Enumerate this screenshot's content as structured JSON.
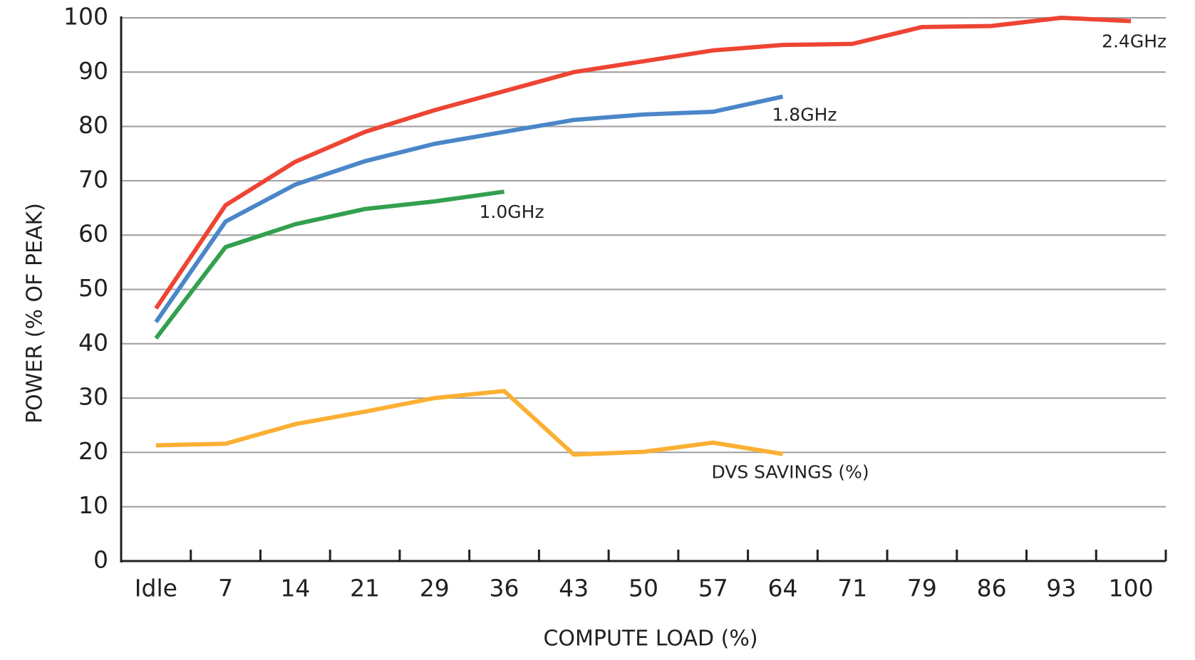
{
  "chart_data": {
    "type": "line",
    "xlabel": "COMPUTE LOAD (%)",
    "ylabel": "POWER (% OF PEAK)",
    "categories": [
      "Idle",
      "7",
      "14",
      "21",
      "29",
      "36",
      "43",
      "50",
      "57",
      "64",
      "71",
      "79",
      "86",
      "93",
      "100"
    ],
    "series": [
      {
        "name": "2.4GHz",
        "color": "#ee4433",
        "values": [
          46.5,
          65.5,
          73.5,
          79,
          83,
          86.5,
          90,
          92,
          94,
          95,
          95.2,
          98.3,
          98.5,
          100,
          99.4
        ]
      },
      {
        "name": "1.8GHz",
        "color": "#4a86c8",
        "values": [
          44,
          62.5,
          69.3,
          73.6,
          76.8,
          79,
          81.2,
          82.2,
          82.7,
          85.5,
          null,
          null,
          null,
          null,
          null
        ]
      },
      {
        "name": "1.0GHz",
        "color": "#33a04f",
        "values": [
          41,
          57.8,
          62,
          64.8,
          66.2,
          68,
          null,
          null,
          null,
          null,
          null,
          null,
          null,
          null,
          null
        ]
      },
      {
        "name": "DVS SAVINGS (%)",
        "color": "#fbb034",
        "values": [
          21.3,
          21.6,
          25.2,
          27.5,
          30,
          31.3,
          19.6,
          20.1,
          21.8,
          19.7,
          null,
          null,
          null,
          null,
          null
        ]
      }
    ],
    "ylim": [
      0,
      100
    ],
    "yticks": [
      0,
      10,
      20,
      30,
      40,
      50,
      60,
      70,
      80,
      90,
      100
    ],
    "grid": true
  }
}
